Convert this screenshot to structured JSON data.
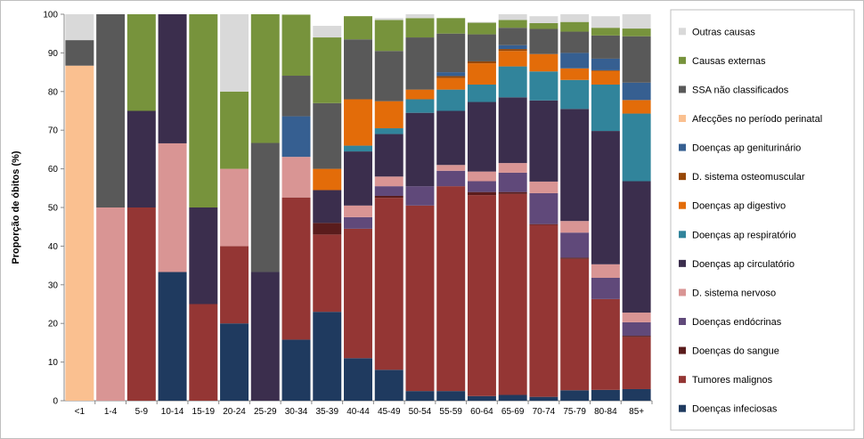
{
  "chart_data": {
    "type": "bar",
    "stacked": true,
    "ylabel": "Proporção de óbitos (%)",
    "xlabel": "",
    "ylim": [
      0,
      100
    ],
    "yticks": [
      0,
      10,
      20,
      30,
      40,
      50,
      60,
      70,
      80,
      90,
      100
    ],
    "grid": false,
    "legend_position": "right",
    "categories": [
      "<1",
      "1-4",
      "5-9",
      "10-14",
      "15-19",
      "20-24",
      "25-29",
      "30-34",
      "35-39",
      "40-44",
      "45-49",
      "50-54",
      "55-59",
      "60-64",
      "65-69",
      "70-74",
      "75-79",
      "80-84",
      "85+"
    ],
    "series": [
      {
        "name": "Doenças infeciosas",
        "color": "#1f3a5f",
        "values": [
          0,
          0,
          0,
          33.3,
          0,
          20,
          0,
          15.8,
          23,
          11,
          8,
          2.5,
          2.5,
          1.2,
          1.5,
          1,
          2.7,
          2.8,
          3
        ]
      },
      {
        "name": "Tumores malignos",
        "color": "#943634",
        "values": [
          0,
          0,
          50,
          0,
          25,
          20,
          0,
          36.8,
          20,
          33.5,
          44.5,
          48,
          53,
          52,
          52,
          44.5,
          34,
          23.5,
          13.5
        ]
      },
      {
        "name": "Doenças do sangue",
        "color": "#5a1c1c",
        "values": [
          0,
          0,
          0,
          0,
          0,
          0,
          0,
          0,
          3,
          0,
          0.5,
          0,
          0,
          0.8,
          0.5,
          0.2,
          0.3,
          0,
          0.3
        ]
      },
      {
        "name": "Doenças endócrinas",
        "color": "#60497a",
        "values": [
          0,
          0,
          0,
          0,
          0,
          0,
          0,
          0,
          0,
          3,
          2.5,
          5,
          4,
          2.8,
          5,
          8,
          6.5,
          5.5,
          3.5
        ]
      },
      {
        "name": "D. sistema nervoso",
        "color": "#d99594",
        "values": [
          0,
          50,
          0,
          33.3,
          0,
          20,
          0,
          10.5,
          0,
          3,
          2.5,
          0,
          1.5,
          2.5,
          2.5,
          3,
          3,
          3.5,
          2.5
        ]
      },
      {
        "name": "Doenças ap circulatório",
        "color": "#3b2e4d",
        "values": [
          0,
          0,
          25,
          33.4,
          25,
          0,
          33.3,
          0,
          8.5,
          14,
          11,
          19,
          14,
          18,
          17,
          21,
          29,
          34.5,
          34
        ]
      },
      {
        "name": "Doenças ap respiratório",
        "color": "#31849b",
        "values": [
          0,
          0,
          0,
          0,
          0,
          0,
          0,
          0,
          0,
          1.5,
          1.5,
          3.5,
          5.5,
          4.5,
          8,
          7.5,
          7.5,
          12,
          17.5
        ]
      },
      {
        "name": "Doenças ap digestivo",
        "color": "#e36c09",
        "values": [
          0,
          0,
          0,
          0,
          0,
          0,
          0,
          0,
          5.5,
          12,
          7,
          2.5,
          3,
          5.5,
          4,
          4.5,
          3,
          3.5,
          3.5
        ]
      },
      {
        "name": "D. sistema osteomuscular",
        "color": "#974706",
        "values": [
          0,
          0,
          0,
          0,
          0,
          0,
          0,
          0,
          0,
          0,
          0,
          0,
          0.5,
          0.5,
          0.5,
          0,
          0,
          0.2,
          0
        ]
      },
      {
        "name": "Doenças ap geniturinário",
        "color": "#365f91",
        "values": [
          0,
          0,
          0,
          0,
          0,
          0,
          0,
          10.5,
          0,
          0,
          0,
          0,
          1,
          0,
          1,
          0,
          4,
          3,
          4.5
        ]
      },
      {
        "name": "Afecções no período perinatal",
        "color": "#fac090",
        "values": [
          86.7,
          0,
          0,
          0,
          0,
          0,
          0,
          0,
          0,
          0,
          0,
          0,
          0,
          0,
          0,
          0,
          0,
          0,
          0
        ]
      },
      {
        "name": "SSA não classificados",
        "color": "#595959",
        "values": [
          6.6,
          50,
          0,
          0,
          0,
          0,
          33.4,
          10.5,
          17,
          15.5,
          13,
          13.5,
          10,
          7,
          4.5,
          6.5,
          5.5,
          6,
          12
        ]
      },
      {
        "name": "Causas externas",
        "color": "#77933c",
        "values": [
          0,
          0,
          25,
          0,
          50,
          20,
          33.3,
          15.8,
          17,
          6,
          8,
          5,
          4,
          3,
          2,
          1.5,
          2.5,
          2,
          2
        ]
      },
      {
        "name": "Outras causas",
        "color": "#d9d9d9",
        "values": [
          6.7,
          0,
          0,
          0,
          0,
          20,
          0,
          0,
          3,
          0,
          0.5,
          1,
          0,
          0.2,
          2,
          1.8,
          2.5,
          3,
          3.7
        ]
      }
    ]
  }
}
